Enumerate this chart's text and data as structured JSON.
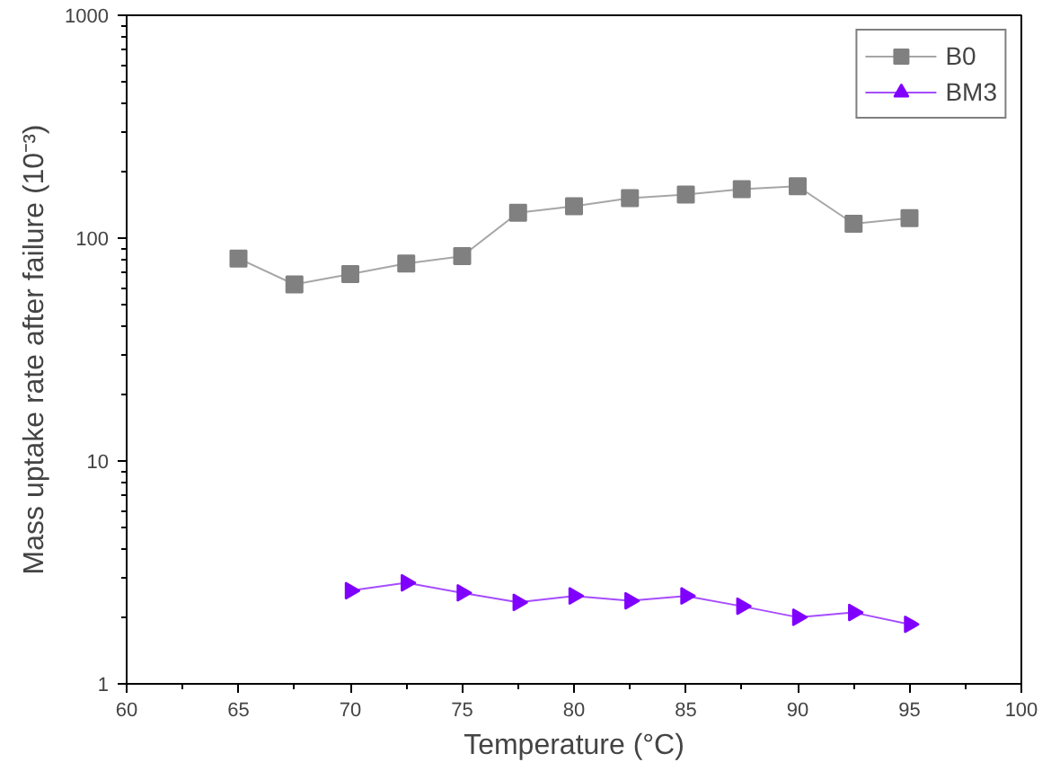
{
  "chart_data": {
    "type": "line",
    "xlabel": "Temperature (°C)",
    "ylabel": "Mass uptake rate after failure (10⁻³)",
    "log": "y",
    "xlim": [
      60,
      100
    ],
    "xticks": [
      60,
      65,
      70,
      75,
      80,
      85,
      90,
      95,
      100
    ],
    "ylim": [
      1,
      1000
    ],
    "yticks": [
      1,
      10,
      100,
      1000
    ],
    "grid": false,
    "legend": "top right",
    "line_style": "solid",
    "series": [
      {
        "name": "B0",
        "color": "#808080",
        "marker": "square",
        "x": [
          65,
          67.5,
          70,
          72.5,
          75,
          77.5,
          80,
          82.5,
          85,
          87.5,
          90,
          92.5,
          95
        ],
        "values": [
          81,
          62,
          69,
          77,
          83,
          130,
          139,
          151,
          157,
          166,
          171,
          116,
          123
        ]
      },
      {
        "name": "BM3",
        "color": "#8000ff",
        "marker": "triangle",
        "x": [
          70,
          72.5,
          75,
          77.5,
          80,
          82.5,
          85,
          87.5,
          90,
          92.5,
          95
        ],
        "values": [
          2.62,
          2.84,
          2.56,
          2.32,
          2.48,
          2.36,
          2.48,
          2.23,
          1.99,
          2.09,
          1.85
        ]
      }
    ]
  }
}
